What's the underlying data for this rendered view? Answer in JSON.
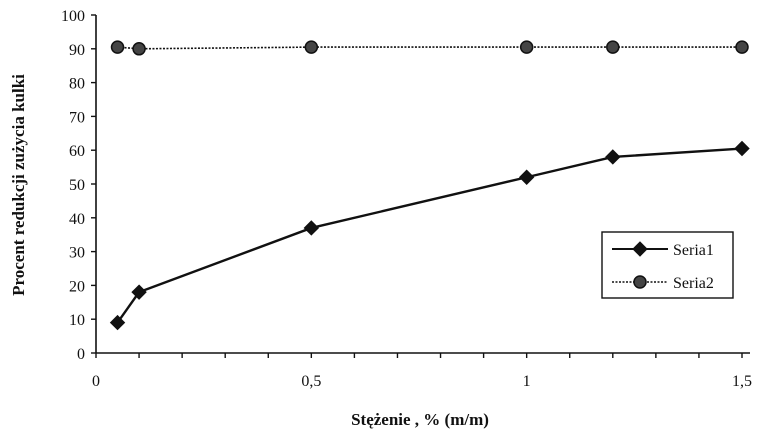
{
  "chart_data": {
    "type": "line",
    "title": "",
    "xlabel": "Stężenie , % (m/m)",
    "ylabel": "Procent redukcji zużycia kulki",
    "xlim": [
      0,
      1.5
    ],
    "ylim": [
      0,
      100
    ],
    "x_ticks": [
      0,
      0.5,
      1,
      1.5
    ],
    "x_tick_labels": [
      "0",
      "0,5",
      "1",
      "1,5"
    ],
    "y_ticks": [
      0,
      10,
      20,
      30,
      40,
      50,
      60,
      70,
      80,
      90,
      100
    ],
    "y_tick_labels": [
      "0",
      "10",
      "20",
      "30",
      "40",
      "50",
      "60",
      "70",
      "80",
      "90",
      "100"
    ],
    "grid": false,
    "legend_position": "right",
    "series": [
      {
        "name": "Seria1",
        "marker": "diamond",
        "color": "#111111",
        "x": [
          0.05,
          0.1,
          0.5,
          1,
          1.2,
          1.5
        ],
        "y": [
          9,
          18,
          37,
          52,
          58,
          60.5
        ]
      },
      {
        "name": "Seria2",
        "marker": "circle",
        "color": "#111111",
        "x": [
          0.05,
          0.1,
          0.5,
          1,
          1.2,
          1.5
        ],
        "y": [
          90.5,
          90,
          90.5,
          90.5,
          90.5,
          90.5
        ]
      }
    ]
  }
}
